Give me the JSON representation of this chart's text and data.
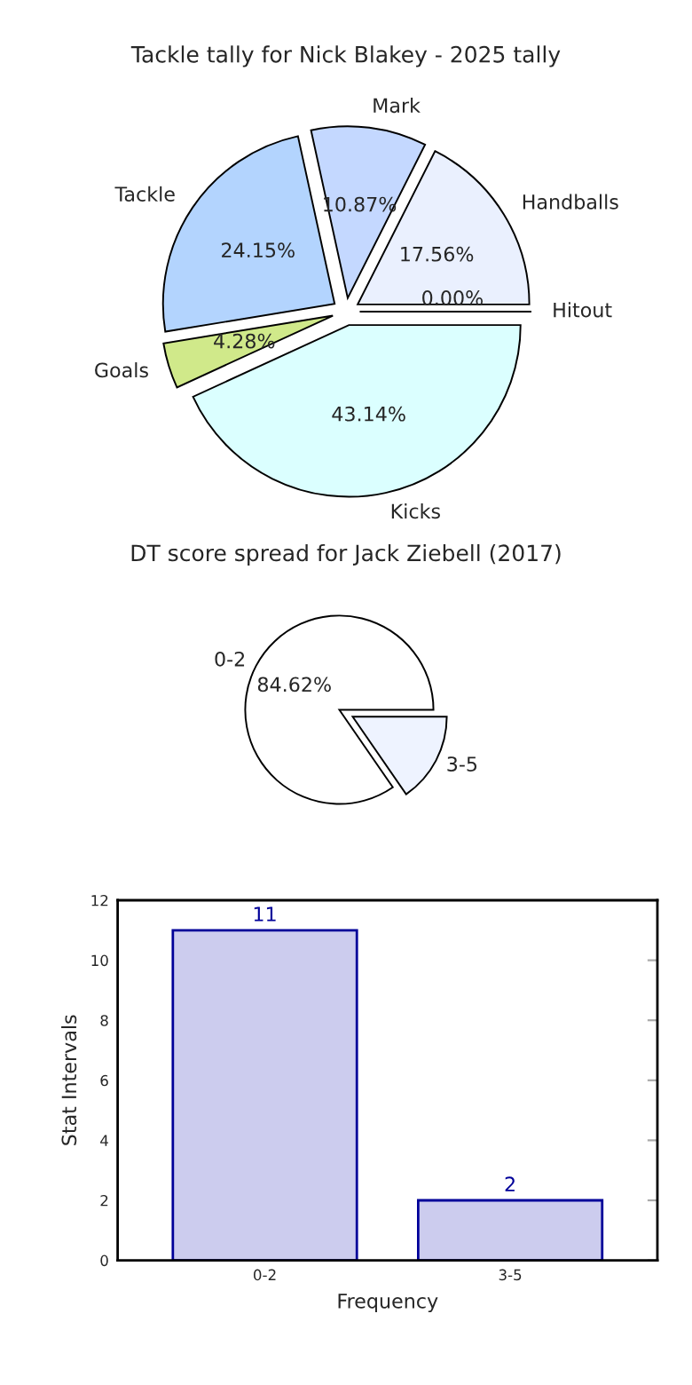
{
  "chart_data": [
    {
      "type": "pie",
      "title": "Tackle tally for Nick Blakey - 2025 tally",
      "categories": [
        "Handballs",
        "Mark",
        "Tackle",
        "Goals",
        "Kicks",
        "Hitout"
      ],
      "values": [
        17.56,
        10.87,
        24.15,
        4.28,
        43.14,
        0.0
      ],
      "colors": [
        "#eaf0fe",
        "#c4d8ff",
        "#b3d4fe",
        "#d0e98a",
        "#dbffff",
        "#f0f0f0"
      ],
      "value_labels": [
        "17.56%",
        "10.87%",
        "24.15%",
        "4.28%",
        "43.14%",
        "0.00%"
      ]
    },
    {
      "type": "pie",
      "title": "DT score spread for Jack Ziebell (2017)",
      "categories": [
        "0-2",
        "3-5"
      ],
      "values": [
        84.62,
        15.38
      ],
      "colors": [
        "#ffffff",
        "#eef3ff"
      ],
      "value_labels": [
        "84.62%",
        null
      ]
    },
    {
      "type": "bar",
      "categories": [
        "0-2",
        "3-5"
      ],
      "values": [
        11,
        2
      ],
      "color": "#ccccee",
      "xlabel": "Frequency",
      "ylabel": "Stat Intervals",
      "ylim": [
        0,
        12
      ],
      "yticks": [
        0,
        2,
        4,
        6,
        8,
        10,
        12
      ],
      "data_labels": true
    }
  ]
}
